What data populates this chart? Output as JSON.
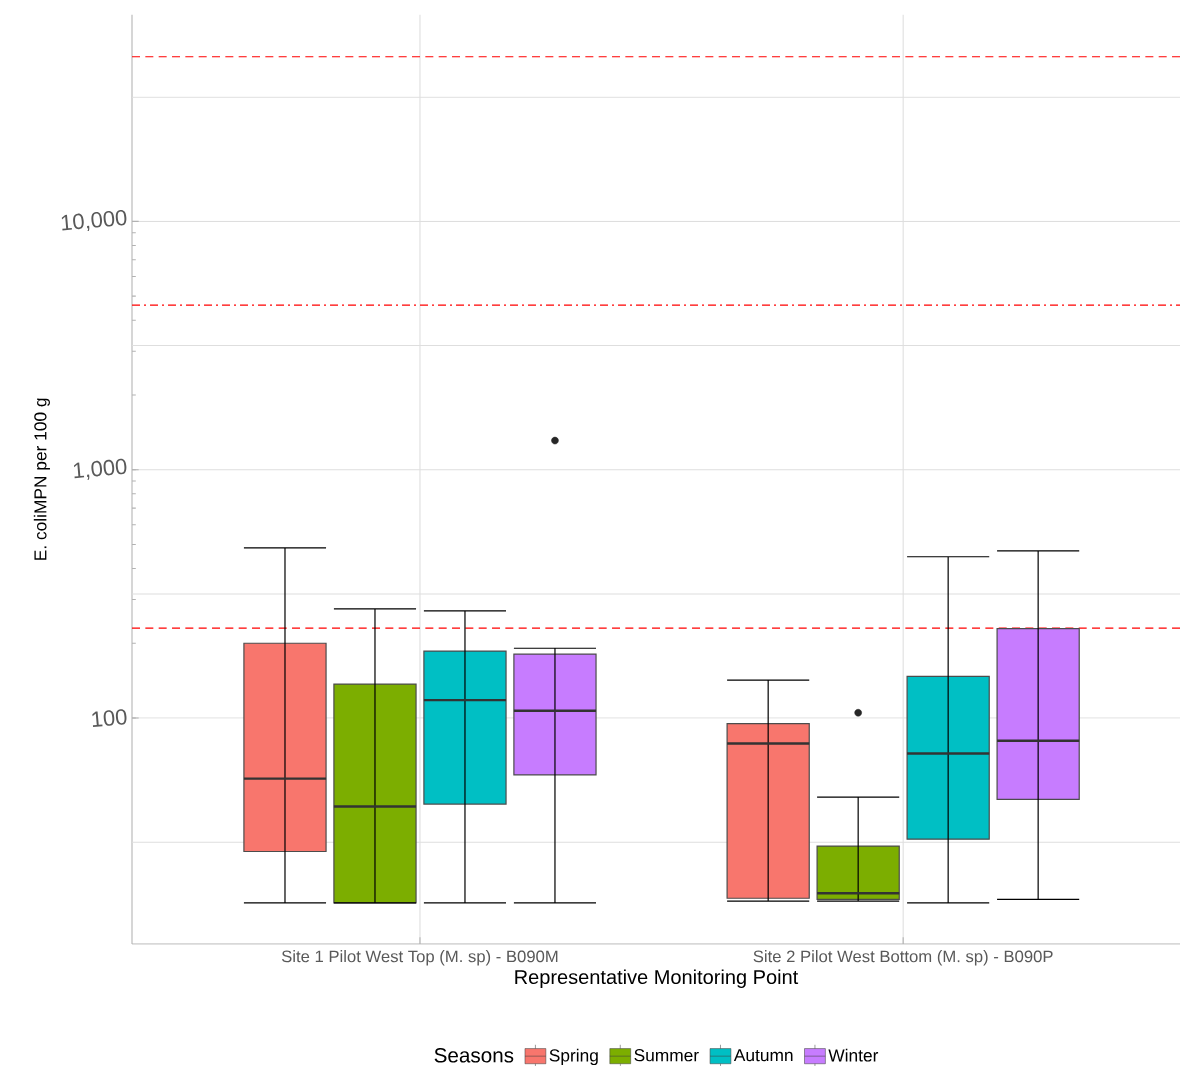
{
  "chart_data": {
    "type": "box",
    "xlabel": "Representative Monitoring Point",
    "ylabel": "E. coliMPN per 100 g",
    "legend_title": "Seasons",
    "categories": [
      "Site 1 Pilot West Top (M. sp) - B090M",
      "Site 2 Pilot West Bottom (M. sp) - B090P"
    ],
    "log": "y",
    "ylim": [
      12.3,
      68000
    ],
    "yticks": [
      {
        "value": 31.6,
        "label": null
      },
      100,
      {
        "value": 316,
        "label": null
      },
      {
        "value": 1000,
        "label": "1,000"
      },
      {
        "value": 3162,
        "label": null
      },
      {
        "value": 10000,
        "label": "10,000"
      },
      {
        "value": 31623,
        "label": null
      }
    ],
    "grid": true,
    "legend": "bottom",
    "ref_lines": [
      {
        "axis": "y",
        "value": 46000,
        "color": "#ff0000",
        "line_style": "dashed"
      },
      {
        "axis": "y",
        "value": 4600,
        "color": "#ff0000",
        "line_style": "dashdot"
      },
      {
        "axis": "y",
        "value": 230,
        "color": "#ff0000",
        "line_style": "dashed"
      }
    ],
    "series": [
      {
        "name": "Spring",
        "color": "#f8766d",
        "boxes": [
          {
            "low": 18,
            "q1": 29,
            "median": 57,
            "q3": 200,
            "high": 484
          },
          {
            "low": 18.3,
            "q1": 18.8,
            "median": 79,
            "q3": 95,
            "high": 142
          }
        ]
      },
      {
        "name": "Summer",
        "color": "#7cae00",
        "boxes": [
          {
            "low": 18,
            "q1": 18,
            "median": 44,
            "q3": 137,
            "high": 275
          },
          {
            "low": 18.3,
            "q1": 18.6,
            "median": 19.7,
            "q3": 30.5,
            "high": 48,
            "outliers": [
              105
            ]
          }
        ]
      },
      {
        "name": "Autumn",
        "color": "#00bfc4",
        "boxes": [
          {
            "low": 18,
            "q1": 45,
            "median": 118,
            "q3": 186,
            "high": 270
          },
          {
            "low": 18,
            "q1": 32.5,
            "median": 72,
            "q3": 147,
            "high": 446
          }
        ]
      },
      {
        "name": "Winter",
        "color": "#c77cff",
        "boxes": [
          {
            "low": 18,
            "q1": 59,
            "median": 107,
            "q3": 181,
            "high": 191,
            "outliers": [
              1310
            ]
          },
          {
            "low": 18.6,
            "q1": 47,
            "median": 81,
            "q3": 229,
            "high": 471
          }
        ]
      }
    ]
  }
}
